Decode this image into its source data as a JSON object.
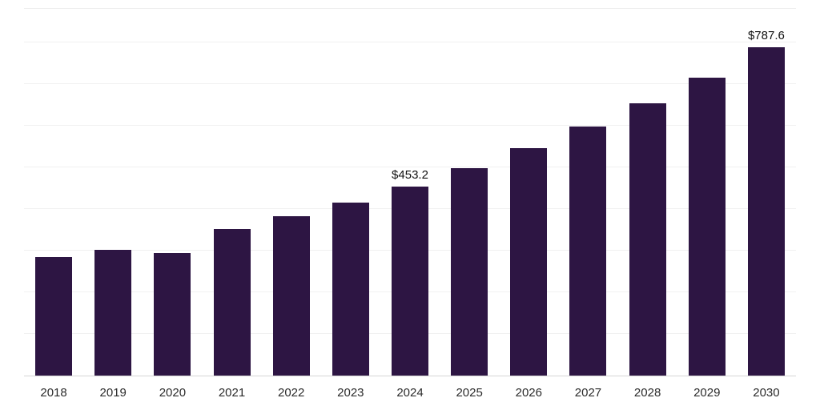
{
  "chart_data": {
    "type": "bar",
    "categories": [
      "2018",
      "2019",
      "2020",
      "2021",
      "2022",
      "2023",
      "2024",
      "2025",
      "2026",
      "2027",
      "2028",
      "2029",
      "2030"
    ],
    "values": [
      285.0,
      302.1,
      294.5,
      351.0,
      383.0,
      415.5,
      453.2,
      498.5,
      545.5,
      598.5,
      653.0,
      715.5,
      787.6
    ],
    "data_labels": [
      {
        "category": "2024",
        "text": "$453.2"
      },
      {
        "category": "2030",
        "text": "$787.6"
      }
    ],
    "title": "",
    "xlabel": "",
    "ylabel": "",
    "ylim": [
      0,
      880
    ],
    "gridline_step": 100,
    "grid": "horizontal",
    "legend": "none"
  },
  "colors": {
    "bar": "#2d1543",
    "gridline": "#f1f1f1",
    "baseline": "#d6d6d6",
    "value_label": "#111111",
    "tick_label": "#2b2b2b",
    "background": "#ffffff"
  }
}
